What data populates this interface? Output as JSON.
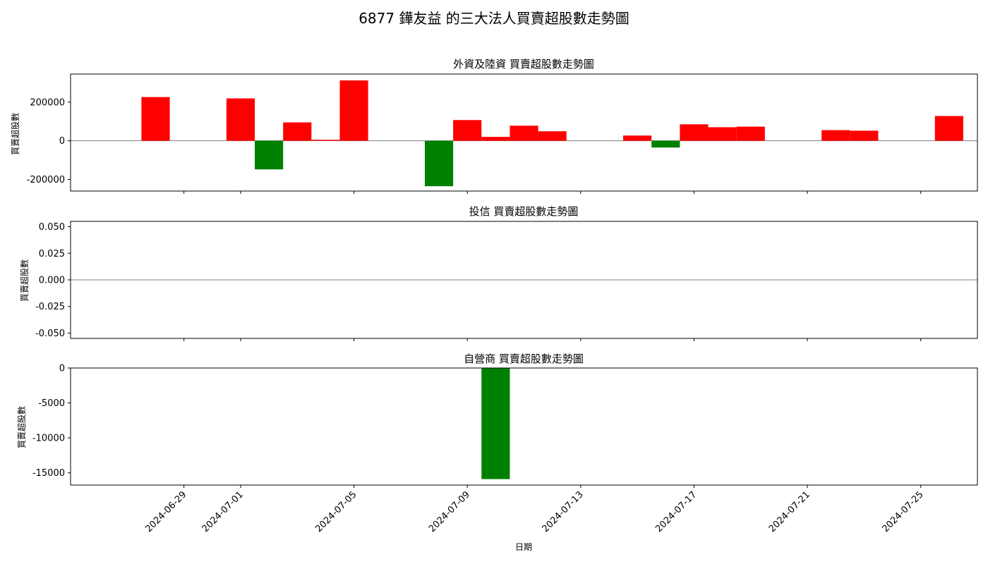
{
  "figure": {
    "suptitle": "6877 鏵友益 的三大法人買賣超股數走勢圖",
    "xlabel": "日期",
    "x_tick_labels": [
      "2024-06-29",
      "2024-07-01",
      "2024-07-05",
      "2024-07-09",
      "2024-07-13",
      "2024-07-17",
      "2024-07-21",
      "2024-07-25"
    ],
    "colors": {
      "positive": "#ff0000",
      "negative": "#008000",
      "zero_line": "#808080"
    }
  },
  "chart_data": [
    {
      "type": "bar",
      "title": "外資及陸資 買賣超股數走勢圖",
      "ylabel": "買賣超股數",
      "ylim": [
        -260000,
        345000
      ],
      "yticks": [
        -200000,
        0,
        200000
      ],
      "ytick_labels": [
        "-200000",
        "0",
        "200000"
      ],
      "bar_width_days": 1,
      "xlim": [
        "2024-06-25",
        "2024-07-27"
      ],
      "x": [
        "2024-06-28",
        "2024-07-01",
        "2024-07-02",
        "2024-07-03",
        "2024-07-04",
        "2024-07-05",
        "2024-07-08",
        "2024-07-09",
        "2024-07-10",
        "2024-07-11",
        "2024-07-12",
        "2024-07-15",
        "2024-07-16",
        "2024-07-17",
        "2024-07-18",
        "2024-07-19",
        "2024-07-22",
        "2024-07-23",
        "2024-07-26"
      ],
      "values": [
        226000,
        219000,
        -148000,
        95000,
        5000,
        312000,
        -235000,
        107000,
        20000,
        78000,
        49000,
        27000,
        -35000,
        85000,
        70000,
        73000,
        55000,
        52000,
        128000
      ]
    },
    {
      "type": "bar",
      "title": "投信 買賣超股數走勢圖",
      "ylabel": "買賣超股數",
      "ylim": [
        -0.055,
        0.055
      ],
      "yticks": [
        -0.05,
        -0.025,
        0,
        0.025,
        0.05
      ],
      "ytick_labels": [
        "-0.050",
        "-0.025",
        "0.000",
        "0.025",
        "0.050"
      ],
      "bar_width_days": 1,
      "xlim": [
        "2024-06-25",
        "2024-07-27"
      ],
      "x": [],
      "values": []
    },
    {
      "type": "bar",
      "title": "自營商 買賣超股數走勢圖",
      "ylabel": "買賣超股數",
      "ylim": [
        -16750,
        0
      ],
      "yticks": [
        -15000,
        -10000,
        -5000,
        0
      ],
      "ytick_labels": [
        "-15000",
        "-10000",
        "-5000",
        "0"
      ],
      "bar_width_days": 1,
      "xlim": [
        "2024-06-25",
        "2024-07-27"
      ],
      "x": [
        "2024-07-10"
      ],
      "values": [
        -15900
      ]
    }
  ]
}
